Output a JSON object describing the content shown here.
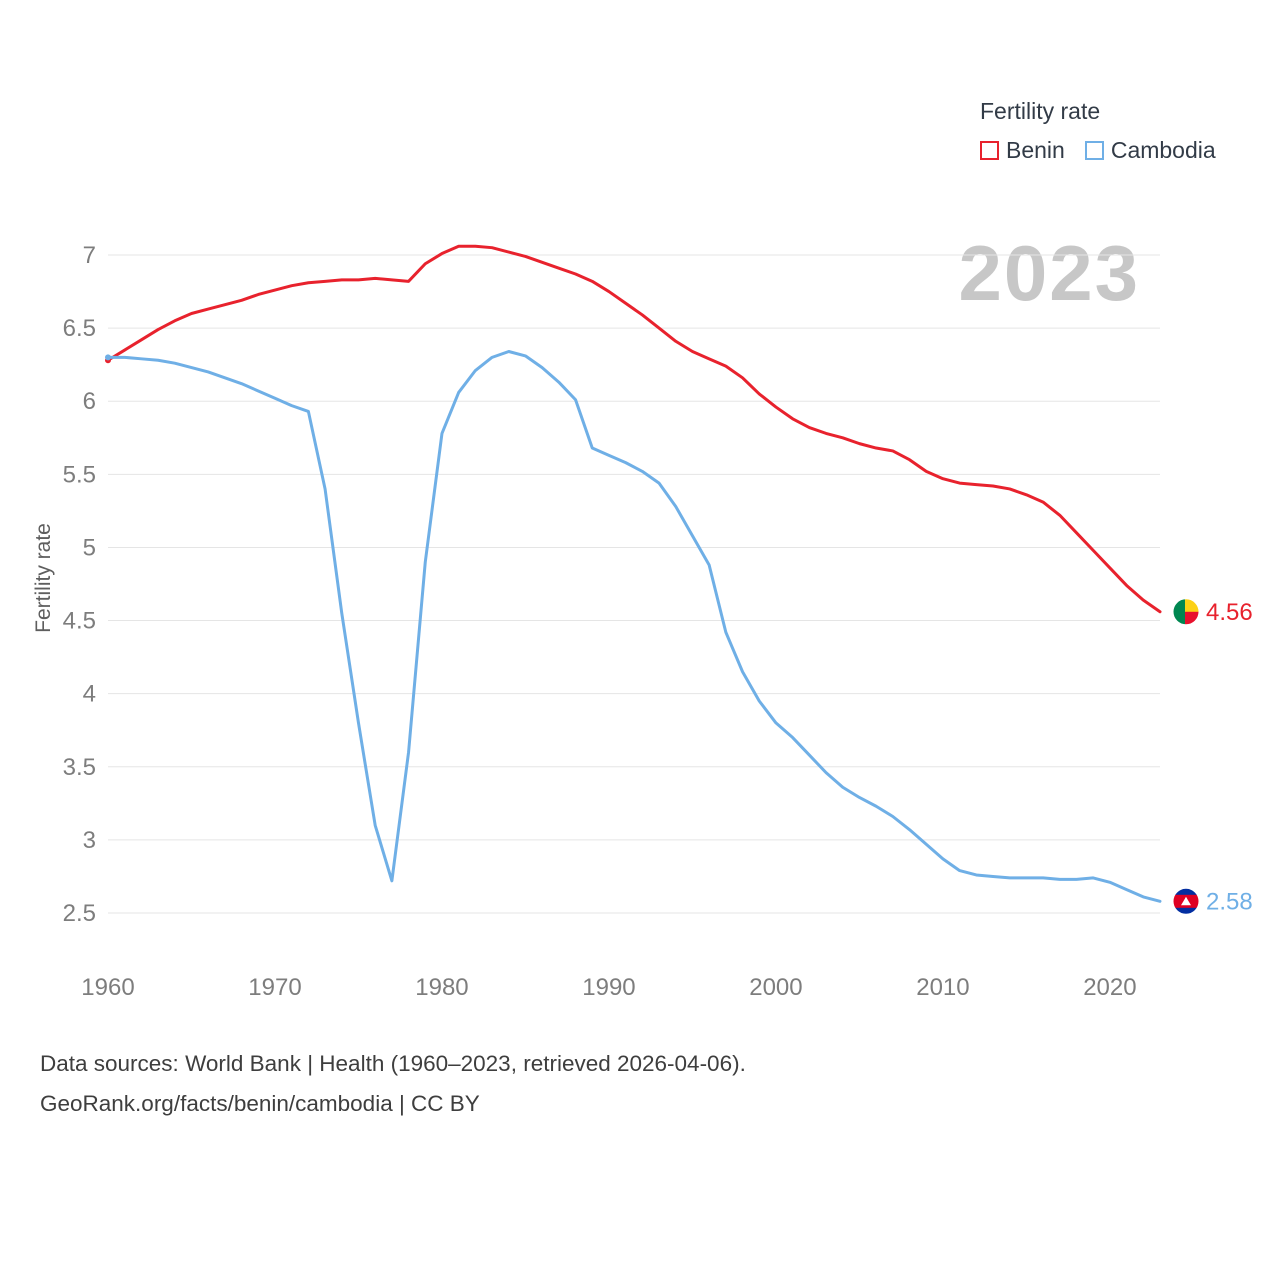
{
  "watermark": "2023",
  "legend": {
    "title": "Fertility rate",
    "items": [
      {
        "label": "Benin",
        "color": "#e8222d"
      },
      {
        "label": "Cambodia",
        "color": "#6fafe6"
      }
    ]
  },
  "chart_data": {
    "type": "line",
    "title": "Fertility rate",
    "xlabel": "",
    "ylabel": "Fertility rate",
    "xlim": [
      1960,
      2023
    ],
    "ylim": [
      2.5,
      7
    ],
    "grid": "horizontal",
    "legend_position": "top-right",
    "x_label_ticks": [
      1960,
      1970,
      1980,
      1990,
      2000,
      2010,
      2020
    ],
    "y_ticks": [
      2.5,
      3,
      3.5,
      4,
      4.5,
      5,
      5.5,
      6,
      6.5,
      7
    ],
    "x": [
      1960,
      1961,
      1962,
      1963,
      1964,
      1965,
      1966,
      1967,
      1968,
      1969,
      1970,
      1971,
      1972,
      1973,
      1974,
      1975,
      1976,
      1977,
      1978,
      1979,
      1980,
      1981,
      1982,
      1983,
      1984,
      1985,
      1986,
      1987,
      1988,
      1989,
      1990,
      1991,
      1992,
      1993,
      1994,
      1995,
      1996,
      1997,
      1998,
      1999,
      2000,
      2001,
      2002,
      2003,
      2004,
      2005,
      2006,
      2007,
      2008,
      2009,
      2010,
      2011,
      2012,
      2013,
      2014,
      2015,
      2016,
      2017,
      2018,
      2019,
      2020,
      2021,
      2022,
      2023
    ],
    "series": [
      {
        "name": "Benin",
        "color": "#e8222d",
        "flag": "benin",
        "end_label": "4.56",
        "values": [
          6.28,
          6.35,
          6.42,
          6.49,
          6.55,
          6.6,
          6.63,
          6.66,
          6.69,
          6.73,
          6.76,
          6.79,
          6.81,
          6.82,
          6.83,
          6.83,
          6.84,
          6.83,
          6.82,
          6.94,
          7.01,
          7.06,
          7.06,
          7.05,
          7.02,
          6.99,
          6.95,
          6.91,
          6.87,
          6.82,
          6.75,
          6.67,
          6.59,
          6.5,
          6.41,
          6.34,
          6.29,
          6.24,
          6.16,
          6.05,
          5.96,
          5.88,
          5.82,
          5.78,
          5.75,
          5.71,
          5.68,
          5.66,
          5.6,
          5.52,
          5.47,
          5.44,
          5.43,
          5.42,
          5.4,
          5.36,
          5.31,
          5.22,
          5.1,
          4.98,
          4.86,
          4.74,
          4.64,
          4.56
        ]
      },
      {
        "name": "Cambodia",
        "color": "#6fafe6",
        "flag": "cambodia",
        "end_label": "2.58",
        "values": [
          6.3,
          6.3,
          6.29,
          6.28,
          6.26,
          6.23,
          6.2,
          6.16,
          6.12,
          6.07,
          6.02,
          5.97,
          5.93,
          5.4,
          4.55,
          3.8,
          3.1,
          2.72,
          3.6,
          4.9,
          5.78,
          6.06,
          6.21,
          6.3,
          6.34,
          6.31,
          6.23,
          6.13,
          6.01,
          5.68,
          5.63,
          5.58,
          5.52,
          5.44,
          5.28,
          5.08,
          4.88,
          4.42,
          4.15,
          3.95,
          3.8,
          3.7,
          3.58,
          3.46,
          3.36,
          3.29,
          3.23,
          3.16,
          3.07,
          2.97,
          2.87,
          2.79,
          2.76,
          2.75,
          2.74,
          2.74,
          2.74,
          2.73,
          2.73,
          2.74,
          2.71,
          2.66,
          2.61,
          2.58
        ]
      }
    ]
  },
  "footer": {
    "line1": "Data sources: World Bank | Health (1960–2023, retrieved 2026-04-06).",
    "line2": "GeoRank.org/facts/benin/cambodia | CC BY"
  },
  "colors": {
    "gridline": "#e5e5e5",
    "tick_label": "#7d7d7d",
    "axis_title": "#5e5e5e",
    "watermark": "#c7c7c7",
    "footer_text": "#3e3e3e",
    "benin_flag_green": "#008751",
    "benin_flag_yellow": "#fcd116",
    "benin_flag_red": "#e8112d",
    "cambodia_flag_blue": "#032ea1",
    "cambodia_flag_red": "#df0023"
  }
}
